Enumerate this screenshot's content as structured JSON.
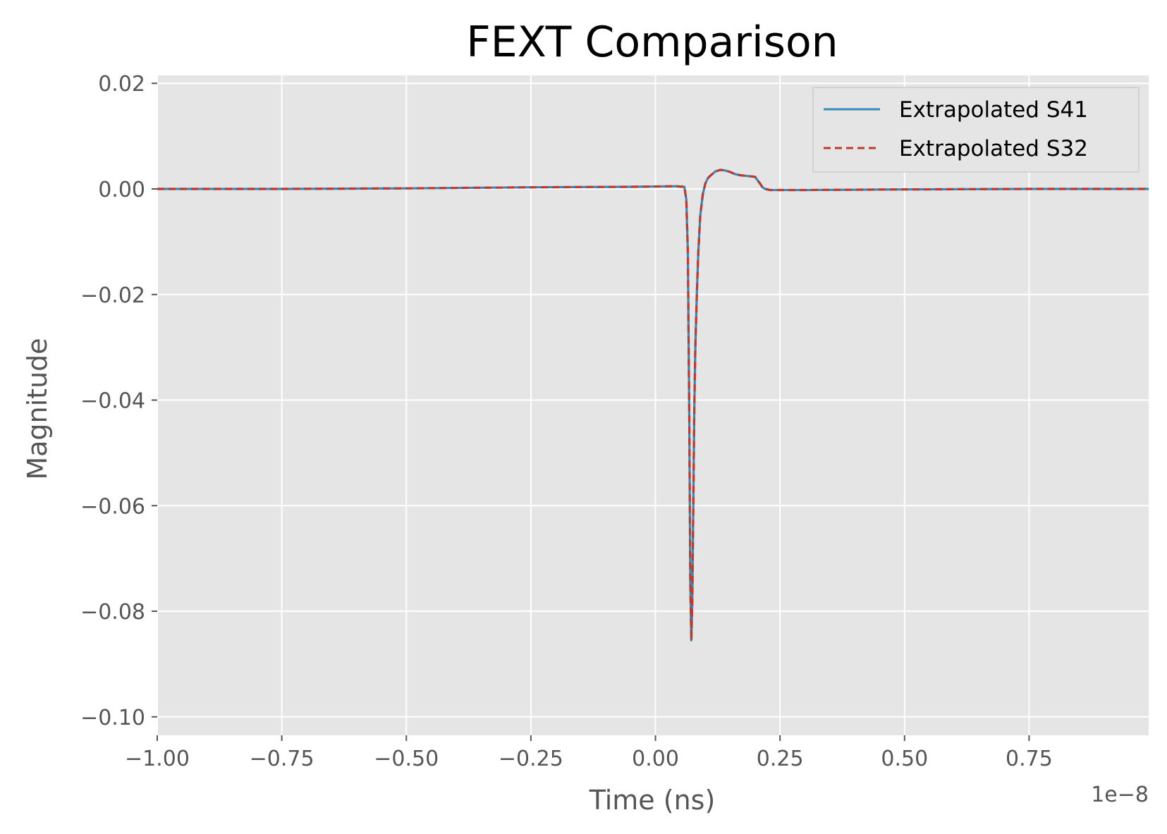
{
  "chart_data": {
    "type": "line",
    "title": "FEXT Comparison",
    "xlabel": "Time (ns)",
    "ylabel": "Magnitude",
    "x_offset_label": "1e−8",
    "xlim": [
      -1.0,
      0.99
    ],
    "ylim": [
      -0.1035,
      0.0215
    ],
    "xticks": [
      -1.0,
      -0.75,
      -0.5,
      -0.25,
      0.0,
      0.25,
      0.5,
      0.75
    ],
    "xtick_labels": [
      "−1.00",
      "−0.75",
      "−0.50",
      "−0.25",
      "0.00",
      "0.25",
      "0.50",
      "0.75"
    ],
    "yticks": [
      0.02,
      0.0,
      -0.02,
      -0.04,
      -0.06,
      -0.08,
      -0.1
    ],
    "ytick_labels": [
      "0.02",
      "0.00",
      "−0.02",
      "−0.04",
      "−0.06",
      "−0.08",
      "−0.10"
    ],
    "grid": true,
    "legend_position": "top-right",
    "series": [
      {
        "name": "Extrapolated S41",
        "style": "solid",
        "color": "#348ABD",
        "x": [
          -1.0,
          -0.75,
          -0.5,
          -0.25,
          -0.05,
          0.04,
          0.058,
          0.062,
          0.065,
          0.068,
          0.07,
          0.072,
          0.074,
          0.076,
          0.078,
          0.08,
          0.083,
          0.086,
          0.09,
          0.095,
          0.1,
          0.105,
          0.11,
          0.12,
          0.13,
          0.14,
          0.15,
          0.16,
          0.17,
          0.18,
          0.2,
          0.21,
          0.215,
          0.22,
          0.23,
          0.25,
          0.3,
          0.5,
          0.75,
          0.99
        ],
        "y": [
          0.0,
          0.0,
          0.0001,
          0.0003,
          0.0004,
          0.0005,
          0.0004,
          -0.002,
          -0.012,
          -0.045,
          -0.075,
          -0.0855,
          -0.078,
          -0.06,
          -0.042,
          -0.03,
          -0.02,
          -0.012,
          -0.005,
          -0.001,
          0.001,
          0.002,
          0.0025,
          0.0033,
          0.0036,
          0.0035,
          0.0032,
          0.0028,
          0.0026,
          0.0025,
          0.0023,
          0.001,
          0.0003,
          0.0,
          -0.0002,
          -0.0002,
          -0.0002,
          -0.0001,
          0.0,
          0.0
        ]
      },
      {
        "name": "Extrapolated S32",
        "style": "dashed",
        "color": "#C0392B",
        "x": [
          -1.0,
          -0.75,
          -0.5,
          -0.25,
          -0.05,
          0.04,
          0.058,
          0.062,
          0.065,
          0.068,
          0.07,
          0.072,
          0.074,
          0.076,
          0.078,
          0.08,
          0.083,
          0.086,
          0.09,
          0.095,
          0.1,
          0.105,
          0.11,
          0.12,
          0.13,
          0.14,
          0.15,
          0.16,
          0.17,
          0.18,
          0.2,
          0.21,
          0.215,
          0.22,
          0.23,
          0.25,
          0.3,
          0.5,
          0.75,
          0.99
        ],
        "y": [
          0.0,
          0.0,
          0.0001,
          0.0003,
          0.0004,
          0.0005,
          0.0004,
          -0.002,
          -0.012,
          -0.045,
          -0.075,
          -0.0855,
          -0.078,
          -0.06,
          -0.042,
          -0.03,
          -0.02,
          -0.012,
          -0.005,
          -0.001,
          0.001,
          0.002,
          0.0025,
          0.0033,
          0.0036,
          0.0035,
          0.0032,
          0.0028,
          0.0026,
          0.0025,
          0.0023,
          0.001,
          0.0003,
          0.0,
          -0.0002,
          -0.0002,
          -0.0002,
          -0.0001,
          0.0,
          0.0
        ]
      }
    ]
  }
}
